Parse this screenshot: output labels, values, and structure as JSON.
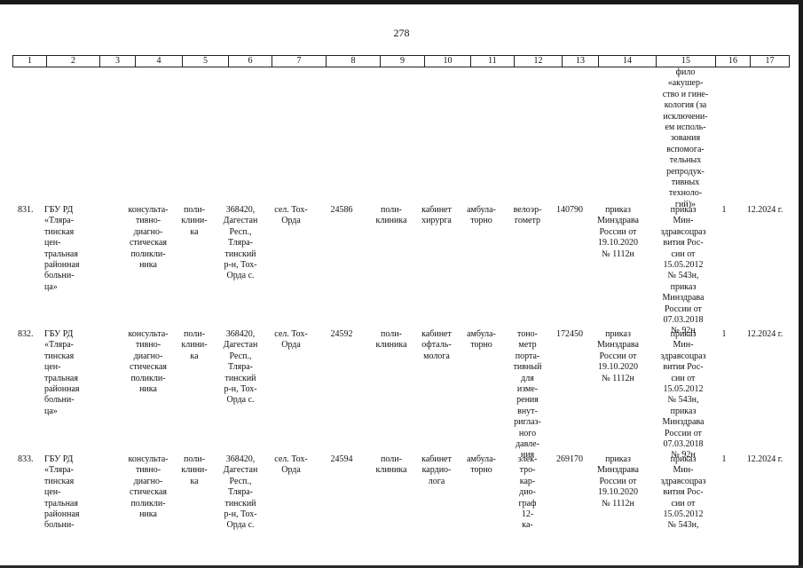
{
  "page_number": "278",
  "header_columns": [
    "1",
    "2",
    "3",
    "4",
    "5",
    "6",
    "7",
    "8",
    "9",
    "10",
    "11",
    "12",
    "13",
    "14",
    "15",
    "16",
    "17"
  ],
  "top_fragment": "фило\n«акушер-\nство и гине-\nкология (за\nисключени-\nем исполь-\nзования\nвспомога-\nтельных\nрепродук-\nтивных\nтехноло-\nгий)»",
  "rows": [
    {
      "num": "831.",
      "org": "ГБУ РД\n«Тляра-\nтинская\nцен-\nтральная\nрайонная\nбольни-\nца»",
      "division": "консульта-\nтивно-\nдиагно-\nстическая\nполикли-\nника",
      "type": "поли-\nклини-\nка",
      "address": "368420,\nДагестан\nРесп.,\nТляра-\nтинский\nр-н, Тох-\nОрда с.",
      "locality": "сел. Тох-\nОрда",
      "code": "24586",
      "unit": "поли-\nклиника",
      "room": "кабинет\nхирурга",
      "mode": "амбула-\nторно",
      "equipment": "велоэр-\nгометр",
      "price": "140790",
      "order": "приказ\nМинздрава\nРоссии от\n19.10.2020\n№ 1112н",
      "basis": "приказ\nМин-\nздравсоцраз\nвития Рос-\nсии от\n15.05.2012\n№ 543н,\nприказ\nМинздрава\nРоссии от\n07.03.2018\n№ 92н",
      "qty": "1",
      "date": "12.2024 г."
    },
    {
      "num": "832.",
      "org": "ГБУ РД\n«Тляра-\nтинская\nцен-\nтральная\nрайонная\nбольни-\nца»",
      "division": "консульта-\nтивно-\nдиагно-\nстическая\nполикли-\nника",
      "type": "поли-\nклини-\nка",
      "address": "368420,\nДагестан\nРесп.,\nТляра-\nтинский\nр-н, Тох-\nОрда с.",
      "locality": "сел. Тох-\nОрда",
      "code": "24592",
      "unit": "поли-\nклиника",
      "room": "кабинет\nофталь-\nмолога",
      "mode": "амбула-\nторно",
      "equipment": "тоно-\nметр\nпорта-\nтивный\nдля\nизме-\nрения\nвнут-\nриглаз-\nного\nдавле-\nния",
      "price": "172450",
      "order": "приказ\nМинздрава\nРоссии от\n19.10.2020\n№ 1112н",
      "basis": "приказ\nМин-\nздравсоцраз\nвития Рос-\nсии от\n15.05.2012\n№ 543н,\nприказ\nМинздрава\nРоссии от\n07.03.2018\n№ 92н",
      "qty": "1",
      "date": "12.2024 г."
    },
    {
      "num": "833.",
      "org": "ГБУ РД\n«Тляра-\nтинская\nцен-\nтральная\nрайонная\nбольни-",
      "division": "консульта-\nтивно-\nдиагно-\nстическая\nполикли-\nника",
      "type": "поли-\nклини-\nка",
      "address": "368420,\nДагестан\nРесп.,\nТляра-\nтинский\nр-н, Тох-\nОрда с.",
      "locality": "сел. Тох-\nОрда",
      "code": "24594",
      "unit": "поли-\nклиника",
      "room": "кабинет\nкардио-\nлога",
      "mode": "амбула-\nторно",
      "equipment": "элек-\nтро-\nкар-\nдио-\nграф\n12-\nка-",
      "price": "269170",
      "order": "приказ\nМинздрава\nРоссии от\n19.10.2020\n№ 1112н",
      "basis": "приказ\nМин-\nздравсоцраз\nвития Рос-\nсии от\n15.05.2012\n№ 543н,",
      "qty": "1",
      "date": "12.2024 г."
    }
  ]
}
